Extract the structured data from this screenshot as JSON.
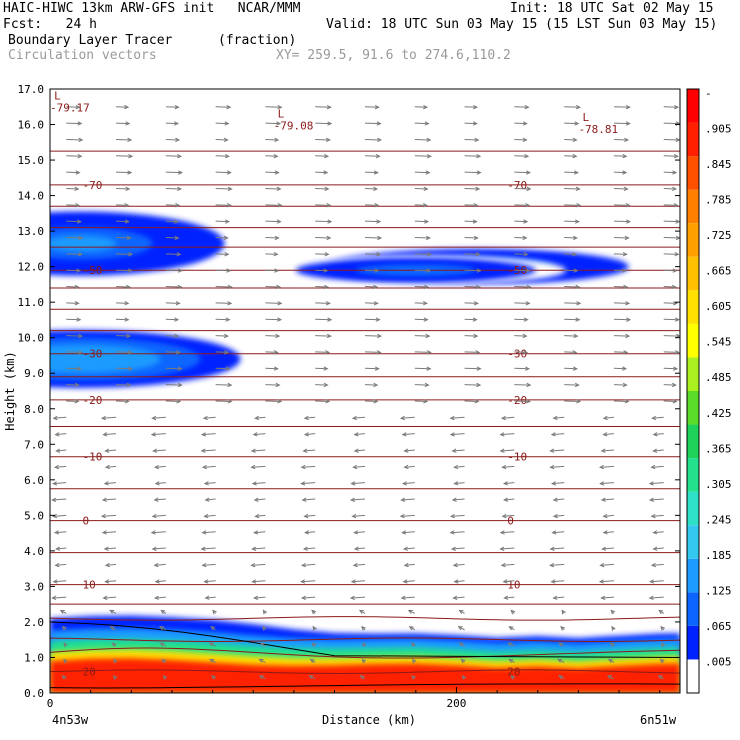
{
  "header": {
    "line1_left": "HAIC-HIWC 13km ARW-GFS init   NCAR/MMM",
    "line1_right": "Init: 18 UTC Sat 02 May 15",
    "line2_left": "Fcst:   24 h",
    "line2_right": "Valid: 18 UTC Sun 03 May 15 (15 LST Sun 03 May 15)",
    "line3_left": "Boundary Layer Tracer",
    "line3_units": "(fraction)",
    "line4_left": "Circulation vectors",
    "line4_xy": "XY= 259.5, 91.6 to 274.6,110.2"
  },
  "colors": {
    "contour": "#8b1a1a",
    "arrow": "#7a7a7a",
    "frame": "#000000",
    "tracer_high": "#ff0000",
    "tracer_low": "#0022ff"
  },
  "chart_data": {
    "type": "heatmap",
    "title": "Boundary Layer Tracer (fraction)",
    "xlabel": "Distance (km)",
    "ylabel": "Height (km)",
    "xlim": [
      0,
      310
    ],
    "ylim": [
      0,
      17
    ],
    "x_ticks": [
      {
        "value": 0,
        "label": "0"
      },
      {
        "value": 200,
        "label": "200"
      }
    ],
    "x_end_labels": {
      "left": "4n53w",
      "right": "6n51w"
    },
    "y_ticks": [
      {
        "value": 0,
        "label": "0.0"
      },
      {
        "value": 1,
        "label": "1.0"
      },
      {
        "value": 2,
        "label": "2.0"
      },
      {
        "value": 3,
        "label": "3.0"
      },
      {
        "value": 4,
        "label": "4.0"
      },
      {
        "value": 5,
        "label": "5.0"
      },
      {
        "value": 6,
        "label": "6.0"
      },
      {
        "value": 7,
        "label": "7.0"
      },
      {
        "value": 8,
        "label": "8.0"
      },
      {
        "value": 9,
        "label": "9.0"
      },
      {
        "value": 10,
        "label": "10.0"
      },
      {
        "value": 11,
        "label": "11.0"
      },
      {
        "value": 12,
        "label": "12.0"
      },
      {
        "value": 13,
        "label": "13.0"
      },
      {
        "value": 14,
        "label": "14.0"
      },
      {
        "value": 15,
        "label": "15.0"
      },
      {
        "value": 16,
        "label": "16.0"
      },
      {
        "value": 17,
        "label": "17.0"
      }
    ],
    "colorbar": {
      "labels": [
        ".005",
        ".065",
        ".125",
        ".185",
        ".245",
        ".305",
        ".365",
        ".425",
        ".485",
        ".545",
        ".605",
        ".665",
        ".725",
        ".785",
        ".845",
        ".905",
        "-"
      ],
      "colors": [
        "#ffffff",
        "#0022ff",
        "#0a66ff",
        "#1e9bff",
        "#32c8f0",
        "#2ee0c8",
        "#22e08c",
        "#1ed25a",
        "#5adc28",
        "#aaf01e",
        "#ffff00",
        "#ffe000",
        "#ffc000",
        "#ffa000",
        "#ff8000",
        "#ff5000",
        "#ff2000",
        "#ff0000"
      ]
    },
    "temperature_contours": [
      {
        "height": 0.6,
        "label": "20"
      },
      {
        "height": 1.1,
        "label": "",
        "tilt": 0.15
      },
      {
        "height": 1.5,
        "label": ""
      },
      {
        "height": 2.1,
        "label": ""
      },
      {
        "height": 2.5,
        "label": ""
      },
      {
        "height": 3.05,
        "label": "10"
      },
      {
        "height": 3.95,
        "label": ""
      },
      {
        "height": 4.85,
        "label": "0"
      },
      {
        "height": 5.75,
        "label": ""
      },
      {
        "height": 6.65,
        "label": "-10"
      },
      {
        "height": 7.5,
        "label": ""
      },
      {
        "height": 8.25,
        "label": "-20"
      },
      {
        "height": 8.9,
        "label": ""
      },
      {
        "height": 9.55,
        "label": "-30"
      },
      {
        "height": 10.2,
        "label": ""
      },
      {
        "height": 10.8,
        "label": ""
      },
      {
        "height": 11.4,
        "label": ""
      },
      {
        "height": 11.9,
        "label": "-50"
      },
      {
        "height": 12.55,
        "label": ""
      },
      {
        "height": 13.1,
        "label": ""
      },
      {
        "height": 13.7,
        "label": ""
      },
      {
        "height": 14.3,
        "label": "-70"
      },
      {
        "height": 15.25,
        "label": ""
      }
    ],
    "lows": [
      {
        "x": 2,
        "y": 16.7,
        "value": "-79.17"
      },
      {
        "x": 112,
        "y": 16.2,
        "value": "-79.08"
      },
      {
        "x": 262,
        "y": 16.1,
        "value": "-78.81"
      }
    ],
    "tracer_regions": [
      {
        "name": "boundary-layer",
        "levels": [
          0.01,
          0.07,
          0.16,
          0.35,
          0.65,
          0.92
        ]
      },
      {
        "name": "upper-layer-west",
        "center": [
          15,
          12.65
        ],
        "peak": 0.16
      },
      {
        "name": "upper-layer-central",
        "center": [
          210,
          12.0
        ],
        "peak": 0.13
      },
      {
        "name": "mid-layer-west",
        "center": [
          15,
          9.4
        ],
        "peak": 0.2
      }
    ]
  }
}
